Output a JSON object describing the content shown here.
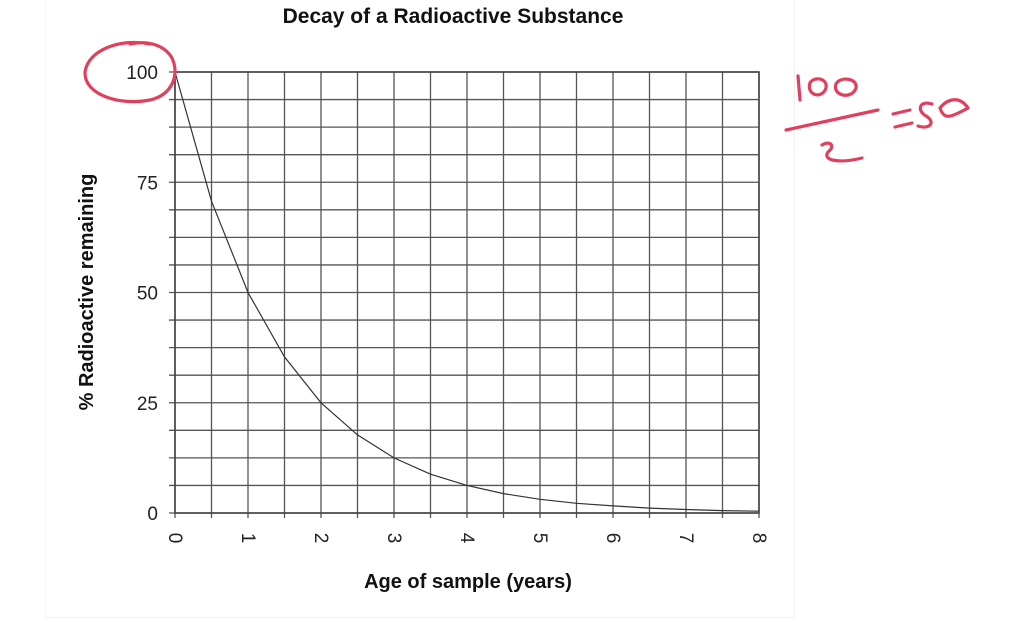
{
  "chart_data": {
    "type": "line",
    "title": "Decay of a Radioactive Substance",
    "xlabel": "Age of sample (years)",
    "ylabel": "% Radioactive remaining",
    "xlim": [
      0,
      8
    ],
    "ylim": [
      0,
      100
    ],
    "x_ticks": [
      0,
      1,
      2,
      3,
      4,
      5,
      6,
      7,
      8
    ],
    "y_ticks": [
      0,
      25,
      50,
      75,
      100
    ],
    "x_grid_step": 0.5,
    "y_grid_step": 6.25,
    "grid": true,
    "series": [
      {
        "name": "Radioactive remaining",
        "x": [
          0,
          0.5,
          1,
          1.5,
          2,
          2.5,
          3,
          3.5,
          4,
          4.5,
          5,
          5.5,
          6,
          6.5,
          7,
          7.5,
          8
        ],
        "y": [
          100,
          70.7,
          50,
          35.4,
          25,
          17.7,
          12.5,
          8.8,
          6.25,
          4.4,
          3.1,
          2.2,
          1.6,
          1.1,
          0.8,
          0.55,
          0.4
        ]
      }
    ],
    "annotations": {
      "circled_value": "100",
      "handwritten_note": "100/2 = 50",
      "color": "#e0405e"
    }
  }
}
